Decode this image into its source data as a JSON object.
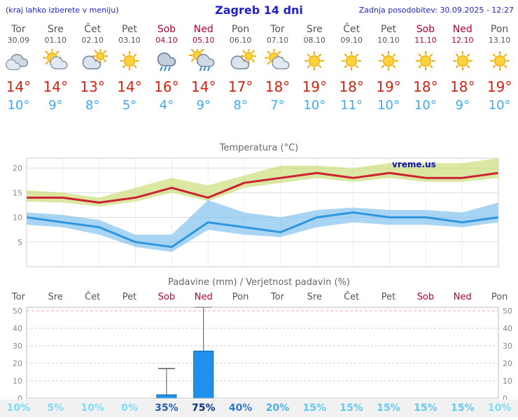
{
  "header": {
    "hint": "(kraj lahko izberete v meniju)",
    "title": "Zagreb 14 dni",
    "updated": "Zadnja posodobitev: 30.09.2025 - 12:27"
  },
  "watermark": "vreme.us",
  "colors": {
    "accent_blue": "#2222cc",
    "weekday": "#555555",
    "weekend": "#b30038",
    "temp_high": "#d42211",
    "temp_low": "#3fa9f5",
    "bar_fill": "#2090ee",
    "bar_border": "#1060b0"
  },
  "forecast": {
    "days": [
      {
        "name": "Tor",
        "date": "30.09",
        "weekend": false,
        "icon": "cloudy",
        "high": "14°",
        "low": "10°"
      },
      {
        "name": "Sre",
        "date": "01.10",
        "weekend": false,
        "icon": "partly-cloudy",
        "high": "14°",
        "low": "9°"
      },
      {
        "name": "Čet",
        "date": "02.10",
        "weekend": false,
        "icon": "mostly-cloudy",
        "high": "13°",
        "low": "8°"
      },
      {
        "name": "Pet",
        "date": "03.10",
        "weekend": false,
        "icon": "sunny",
        "high": "14°",
        "low": "5°"
      },
      {
        "name": "Sob",
        "date": "04.10",
        "weekend": true,
        "icon": "rain",
        "high": "16°",
        "low": "4°"
      },
      {
        "name": "Ned",
        "date": "05.10",
        "weekend": true,
        "icon": "rain-showers",
        "high": "14°",
        "low": "9°"
      },
      {
        "name": "Pon",
        "date": "06.10",
        "weekend": false,
        "icon": "mostly-cloudy",
        "high": "17°",
        "low": "8°"
      },
      {
        "name": "Tor",
        "date": "07.10",
        "weekend": false,
        "icon": "partly-cloudy",
        "high": "18°",
        "low": "7°"
      },
      {
        "name": "Sre",
        "date": "08.10",
        "weekend": false,
        "icon": "sunny",
        "high": "19°",
        "low": "10°"
      },
      {
        "name": "Čet",
        "date": "09.10",
        "weekend": false,
        "icon": "sunny",
        "high": "18°",
        "low": "11°"
      },
      {
        "name": "Pet",
        "date": "10.10",
        "weekend": false,
        "icon": "sunny",
        "high": "19°",
        "low": "10°"
      },
      {
        "name": "Sob",
        "date": "11.10",
        "weekend": true,
        "icon": "sunny",
        "high": "18°",
        "low": "10°"
      },
      {
        "name": "Ned",
        "date": "12.10",
        "weekend": true,
        "icon": "sunny",
        "high": "18°",
        "low": "9°"
      },
      {
        "name": "Pon",
        "date": "13.10",
        "weekend": false,
        "icon": "sunny",
        "high": "19°",
        "low": "10°"
      }
    ]
  },
  "chart_data": [
    {
      "type": "area",
      "title": "Temperatura (°C)",
      "x": [
        "Tor",
        "Sre",
        "Čet",
        "Pet",
        "Sob",
        "Ned",
        "Pon",
        "Tor",
        "Sre",
        "Čet",
        "Pet",
        "Sob",
        "Ned",
        "Pon"
      ],
      "ylim": [
        0,
        22
      ],
      "yticks": [
        5,
        10,
        15,
        20
      ],
      "grid": true,
      "series": [
        {
          "name": "max",
          "color": "#cc2233",
          "values": [
            14,
            14,
            13,
            14,
            16,
            14,
            17,
            18,
            19,
            18,
            19,
            18,
            18,
            19
          ]
        },
        {
          "name": "min",
          "color": "#2f96dd",
          "values": [
            10,
            9,
            8,
            5,
            4,
            9,
            8,
            7,
            10,
            11,
            10,
            10,
            9,
            10
          ]
        },
        {
          "name": "max_range_high",
          "values": [
            15.5,
            15,
            14,
            16,
            18,
            16.5,
            18.5,
            20.5,
            20.5,
            20,
            21,
            21,
            21,
            22
          ]
        },
        {
          "name": "max_range_low",
          "values": [
            13.2,
            13,
            12.2,
            13.2,
            15,
            13.3,
            16,
            17,
            18,
            17.2,
            18,
            17.2,
            17.2,
            18
          ]
        },
        {
          "name": "min_range_high",
          "values": [
            11,
            10.5,
            9.5,
            6.5,
            6.5,
            13.5,
            11,
            10,
            11.5,
            12,
            11.5,
            11.5,
            11,
            13
          ]
        },
        {
          "name": "min_range_low",
          "values": [
            8.5,
            8,
            6.5,
            4,
            3,
            7.5,
            6.5,
            6,
            8,
            9,
            8.5,
            8.5,
            8,
            9
          ]
        }
      ],
      "band_colors": {
        "max": "rgba(200,220,110,0.65)",
        "min": "rgba(110,185,235,0.60)"
      }
    },
    {
      "type": "bar",
      "title": "Padavine (mm) / Verjetnost padavin (%)",
      "categories": [
        {
          "label": "Tor",
          "weekend": false
        },
        {
          "label": "Sre",
          "weekend": false
        },
        {
          "label": "Čet",
          "weekend": false
        },
        {
          "label": "Pet",
          "weekend": false
        },
        {
          "label": "Sob",
          "weekend": true
        },
        {
          "label": "Ned",
          "weekend": true
        },
        {
          "label": "Pon",
          "weekend": false
        },
        {
          "label": "Tor",
          "weekend": false
        },
        {
          "label": "Sre",
          "weekend": false
        },
        {
          "label": "Čet",
          "weekend": false
        },
        {
          "label": "Pet",
          "weekend": false
        },
        {
          "label": "Sob",
          "weekend": true
        },
        {
          "label": "Ned",
          "weekend": true
        },
        {
          "label": "Pon",
          "weekend": false
        }
      ],
      "values_mm": [
        0,
        0,
        0,
        0,
        2,
        27,
        0,
        0,
        0,
        0,
        0,
        0,
        0,
        0
      ],
      "whisker_max": [
        0,
        0,
        0,
        0,
        17,
        52,
        0,
        0,
        0,
        0,
        0,
        0,
        0,
        0
      ],
      "probability": [
        "10%",
        "5%",
        "10%",
        "0%",
        "35%",
        "75%",
        "40%",
        "20%",
        "15%",
        "15%",
        "15%",
        "15%",
        "15%",
        "10%"
      ],
      "probability_colors": [
        "#7cdbfa",
        "#7cdbfa",
        "#7cdbfa",
        "#7cdbfa",
        "#2b5fae",
        "#0d2f8a",
        "#2f7fd0",
        "#49aee8",
        "#63c8f2",
        "#63c8f2",
        "#63c8f2",
        "#63c8f2",
        "#63c8f2",
        "#7cdbfa"
      ],
      "ylim": [
        0,
        52
      ],
      "yticks": [
        0,
        10,
        20,
        30,
        40,
        50
      ],
      "grid": "dashed"
    }
  ]
}
